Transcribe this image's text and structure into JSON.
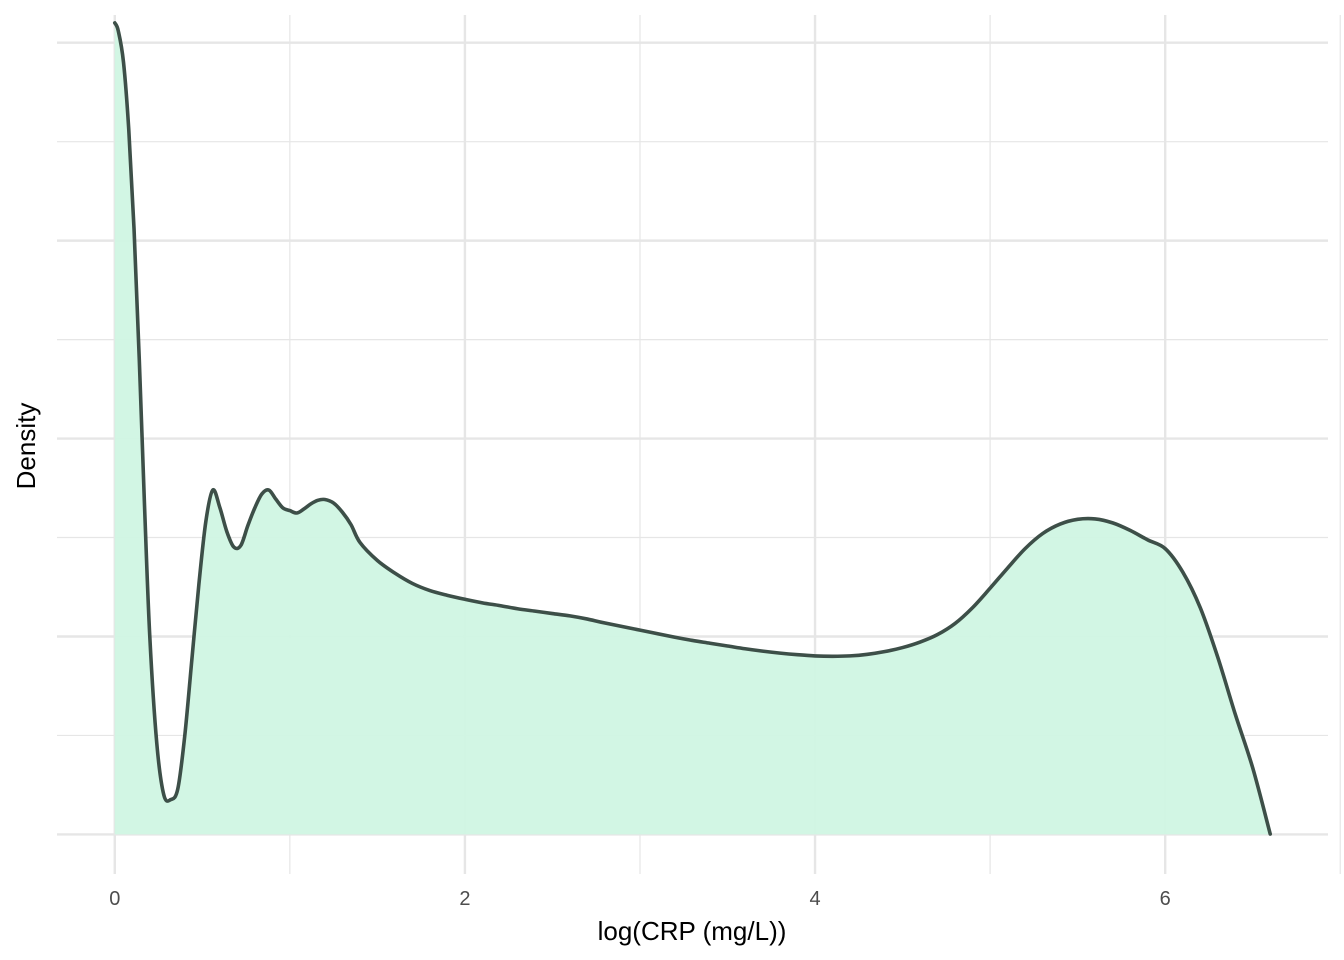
{
  "chart_data": {
    "type": "area",
    "title": "",
    "xlabel": "log(CRP (mg/L))",
    "ylabel": "Density",
    "x_ticks": [
      0,
      2,
      4,
      6
    ],
    "x_tick_labels": [
      "0",
      "2",
      "4",
      "6"
    ],
    "y_tick_labels_shown": false,
    "xlim": [
      -0.33,
      6.93
    ],
    "ylim": [
      -0.01,
      0.207
    ],
    "grid": true,
    "legend": "none",
    "colors": {
      "fill": "#d0f5e3",
      "line": "#3d4f48",
      "grid": "#e6e6e6"
    },
    "series": [
      {
        "x": [
          0.0,
          0.02,
          0.05,
          0.08,
          0.11,
          0.14,
          0.17,
          0.2,
          0.24,
          0.28,
          0.32,
          0.36,
          0.4,
          0.44,
          0.48,
          0.52,
          0.56,
          0.6,
          0.64,
          0.68,
          0.72,
          0.76,
          0.8,
          0.84,
          0.88,
          0.92,
          0.96,
          1.0,
          1.04,
          1.08,
          1.12,
          1.16,
          1.2,
          1.25,
          1.3,
          1.35,
          1.4,
          1.5,
          1.6,
          1.7,
          1.8,
          1.9,
          2.0,
          2.1,
          2.2,
          2.3,
          2.4,
          2.5,
          2.6,
          2.7,
          2.8,
          3.0,
          3.2,
          3.3,
          3.4,
          3.5,
          3.6,
          3.7,
          3.8,
          3.9,
          4.0,
          4.1,
          4.2,
          4.3,
          4.4,
          4.5,
          4.6,
          4.7,
          4.8,
          4.9,
          5.0,
          5.1,
          5.2,
          5.3,
          5.4,
          5.5,
          5.6,
          5.7,
          5.8,
          5.9,
          6.0,
          6.1,
          6.2,
          6.3,
          6.4,
          6.5,
          6.6
        ],
        "y": [
          0.205,
          0.203,
          0.195,
          0.178,
          0.153,
          0.12,
          0.083,
          0.05,
          0.023,
          0.01,
          0.0088,
          0.0115,
          0.025,
          0.044,
          0.063,
          0.079,
          0.087,
          0.0826,
          0.0765,
          0.0726,
          0.073,
          0.078,
          0.0825,
          0.086,
          0.087,
          0.0847,
          0.0825,
          0.0818,
          0.0812,
          0.0822,
          0.0835,
          0.0844,
          0.0846,
          0.0837,
          0.0814,
          0.0782,
          0.0738,
          0.0692,
          0.066,
          0.0634,
          0.0616,
          0.0604,
          0.0594,
          0.0585,
          0.0578,
          0.057,
          0.0564,
          0.0558,
          0.0552,
          0.0544,
          0.0534,
          0.0516,
          0.0498,
          0.049,
          0.0483,
          0.0476,
          0.0469,
          0.0463,
          0.0458,
          0.0454,
          0.0451,
          0.045,
          0.0451,
          0.0455,
          0.0462,
          0.0472,
          0.0486,
          0.0505,
          0.0533,
          0.0573,
          0.0622,
          0.0673,
          0.0722,
          0.076,
          0.0784,
          0.0796,
          0.0797,
          0.0787,
          0.0768,
          0.0744,
          0.0722,
          0.0663,
          0.0573,
          0.0448,
          0.0304,
          0.0168,
          0.0001
        ]
      }
    ]
  }
}
